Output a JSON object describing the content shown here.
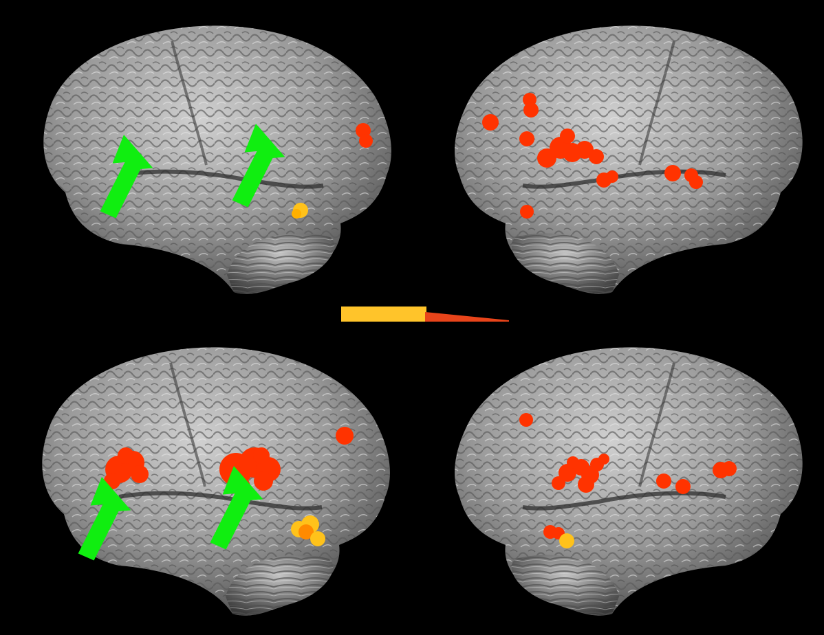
{
  "colors": {
    "background": "#000000",
    "cortex_light": "#c9c9c9",
    "cortex_mid": "#8e8e8e",
    "cortex_dark": "#3e3e3e",
    "activation_red": "#ff3300",
    "activation_orange": "#ff8a00",
    "activation_yellow": "#ffc21a",
    "arrow_green": "#10ee10",
    "colorbar_start": "#ffc42a",
    "colorbar_end": "#e8441a"
  },
  "panels": [
    {
      "id": "top-left",
      "hemisphere_view": "left-lateral",
      "arrows": 2
    },
    {
      "id": "top-right",
      "hemisphere_view": "right-lateral",
      "arrows": 0
    },
    {
      "id": "bottom-left",
      "hemisphere_view": "left-lateral",
      "arrows": 2
    },
    {
      "id": "bottom-right",
      "hemisphere_view": "right-lateral",
      "arrows": 0
    }
  ],
  "colorbar": {
    "scale": "yellow-to-red"
  },
  "icons": [
    "arrow-icon"
  ]
}
